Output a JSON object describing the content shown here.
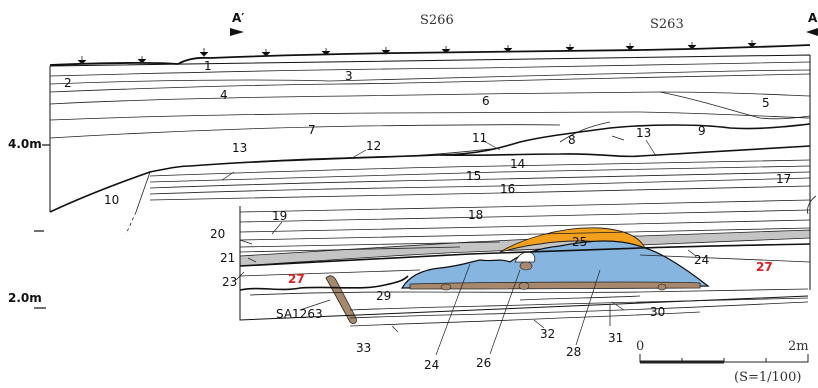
{
  "section": {
    "marker_left": "A′",
    "marker_right": "A",
    "grid_left": "S266",
    "grid_right": "S263",
    "elevation_upper": "4.0m",
    "elevation_lower": "2.0m"
  },
  "layers": [
    "1",
    "2",
    "3",
    "4",
    "5",
    "6",
    "7",
    "8",
    "9",
    "10",
    "11",
    "12",
    "13",
    "13",
    "14",
    "15",
    "16",
    "17",
    "18",
    "19",
    "20",
    "21",
    "23",
    "24",
    "24",
    "25",
    "26",
    "27",
    "27",
    "28",
    "29",
    "30",
    "31",
    "32",
    "33",
    "24"
  ],
  "feature_label": "SA1263",
  "scale": {
    "zero": "0",
    "max": "2m",
    "ratio": "(S=1/100)"
  },
  "colors": {
    "blue": "#86b5e0",
    "orange": "#f3a01c",
    "gray": "#c4c4c4",
    "brown": "#a8886c",
    "red": "#e02020"
  }
}
